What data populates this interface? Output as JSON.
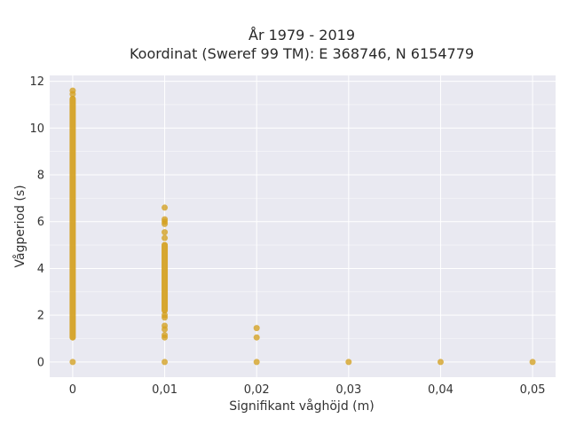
{
  "chart_data": {
    "type": "scatter",
    "title_lines": [
      "År 1979 - 2019",
      "Koordinat (Sweref 99 TM): E 368746, N 6154779"
    ],
    "xlabel": "Signifikant våghöjd (m)",
    "ylabel": "Vågperiod (s)",
    "xlim": [
      -0.0025,
      0.0525
    ],
    "ylim": [
      -0.65,
      12.25
    ],
    "x_ticks": [
      0,
      0.01,
      0.02,
      0.03,
      0.04,
      0.05
    ],
    "x_tick_labels": [
      "0",
      "0,01",
      "0,02",
      "0,03",
      "0,04",
      "0,05"
    ],
    "y_ticks": [
      0,
      2,
      4,
      6,
      8,
      10,
      12
    ],
    "y_tick_labels": [
      "0",
      "2",
      "4",
      "6",
      "8",
      "10",
      "12"
    ],
    "grid": true,
    "legend": "none",
    "colors": {
      "marker": "#D4A020",
      "background": "#E9E9F1",
      "grid": "#FFFFFF"
    },
    "columns": [
      {
        "x": 0,
        "dense_range": [
          1.05,
          11.25
        ],
        "points": [
          0,
          11.45,
          11.6
        ]
      },
      {
        "x": 0.01,
        "dense_range": [
          2.2,
          5.0
        ],
        "points": [
          0,
          1.05,
          1.15,
          1.4,
          1.55,
          1.9,
          2.0,
          5.3,
          5.55,
          5.9,
          6.0,
          6.1,
          6.6
        ]
      },
      {
        "x": 0.02,
        "points": [
          0,
          1.05,
          1.45
        ]
      },
      {
        "x": 0.03,
        "points": [
          0
        ]
      },
      {
        "x": 0.04,
        "points": [
          0
        ]
      },
      {
        "x": 0.05,
        "points": [
          0
        ]
      }
    ]
  }
}
